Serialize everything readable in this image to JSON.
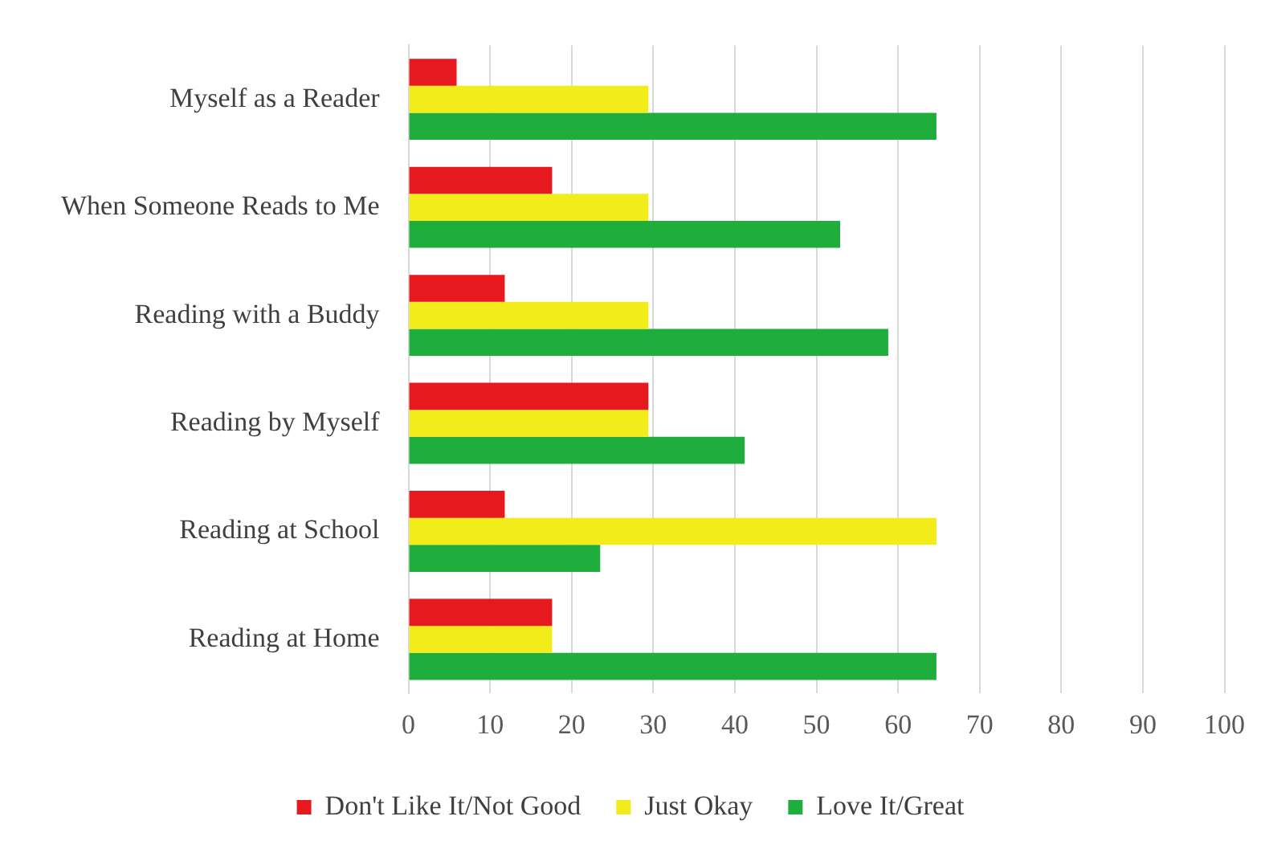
{
  "chart_data": {
    "type": "bar",
    "orientation": "horizontal",
    "categories": [
      "Myself as a Reader",
      "When Someone Reads to Me",
      "Reading with a Buddy",
      "Reading by Myself",
      "Reading at School",
      "Reading at Home"
    ],
    "series": [
      {
        "name": "Don't Like It/Not Good",
        "color": "#e8191e",
        "values": [
          5.9,
          17.6,
          11.8,
          29.4,
          11.8,
          17.6
        ]
      },
      {
        "name": "Just Okay",
        "color": "#f2ec1a",
        "values": [
          29.4,
          29.4,
          29.4,
          29.4,
          64.7,
          17.6
        ]
      },
      {
        "name": "Love It/Great",
        "color": "#1fae3c",
        "values": [
          64.7,
          52.9,
          58.8,
          41.2,
          23.5,
          64.7
        ]
      }
    ],
    "xlim": [
      0,
      100
    ],
    "xticks": [
      0,
      10,
      20,
      30,
      40,
      50,
      60,
      70,
      80,
      90,
      100
    ],
    "grid": "x",
    "legend": "bottom"
  }
}
